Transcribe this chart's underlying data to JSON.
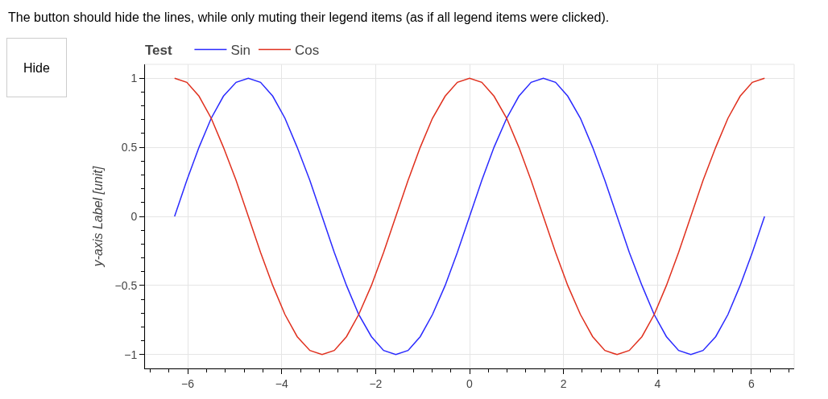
{
  "chart_data": {
    "type": "line",
    "title": "Test",
    "ylabel": "y-axis Label [unit]",
    "annotations": [
      "The button should hide the lines, while only muting their legend items (as if all legend items were clicked).",
      "Hide"
    ],
    "x": [
      -6.28,
      -6.02,
      -5.76,
      -5.5,
      -5.24,
      -4.97,
      -4.71,
      -4.45,
      -4.19,
      -3.93,
      -3.67,
      -3.4,
      -3.14,
      -2.88,
      -2.62,
      -2.36,
      -2.09,
      -1.83,
      -1.57,
      -1.31,
      -1.05,
      -0.79,
      -0.52,
      -0.26,
      0,
      0.26,
      0.52,
      0.79,
      1.05,
      1.31,
      1.57,
      1.83,
      2.09,
      2.36,
      2.62,
      2.88,
      3.14,
      3.4,
      3.67,
      3.93,
      4.19,
      4.45,
      4.71,
      4.97,
      5.24,
      5.5,
      5.76,
      6.02,
      6.28
    ],
    "series": [
      {
        "name": "Sin",
        "color": "#2a2aff",
        "values": [
          0,
          0.26,
          0.5,
          0.71,
          0.87,
          0.97,
          1,
          0.97,
          0.87,
          0.71,
          0.5,
          0.26,
          0,
          -0.26,
          -0.5,
          -0.71,
          -0.87,
          -0.97,
          -1,
          -0.97,
          -0.87,
          -0.71,
          -0.5,
          -0.26,
          0,
          0.26,
          0.5,
          0.71,
          0.87,
          0.97,
          1,
          0.97,
          0.87,
          0.71,
          0.5,
          0.26,
          0,
          -0.26,
          -0.5,
          -0.71,
          -0.87,
          -0.97,
          -1,
          -0.97,
          -0.87,
          -0.71,
          -0.5,
          -0.26,
          0
        ]
      },
      {
        "name": "Cos",
        "color": "#e0301e",
        "values": [
          1,
          0.97,
          0.87,
          0.71,
          0.5,
          0.26,
          0,
          -0.26,
          -0.5,
          -0.71,
          -0.87,
          -0.97,
          -1,
          -0.97,
          -0.87,
          -0.71,
          -0.5,
          -0.26,
          0,
          0.26,
          0.5,
          0.71,
          0.87,
          0.97,
          1,
          0.97,
          0.87,
          0.71,
          0.5,
          0.26,
          0,
          -0.26,
          -0.5,
          -0.71,
          -0.87,
          -0.97,
          -1,
          -0.97,
          -0.87,
          -0.71,
          -0.5,
          -0.26,
          0,
          0.26,
          0.5,
          0.71,
          0.87,
          0.97,
          1
        ]
      }
    ],
    "xlim": [
      -6.91,
      6.91
    ],
    "ylim": [
      -1.1,
      1.1
    ],
    "xticks": [
      {
        "value": -6.8,
        "label": null
      },
      {
        "value": -6.4,
        "label": null
      },
      {
        "value": -6,
        "label": "−6"
      },
      {
        "value": -5.6,
        "label": null
      },
      {
        "value": -5.2,
        "label": null
      },
      {
        "value": -4.8,
        "label": null
      },
      {
        "value": -4.4,
        "label": null
      },
      {
        "value": -4,
        "label": "−4"
      },
      {
        "value": -3.6,
        "label": null
      },
      {
        "value": -3.2,
        "label": null
      },
      {
        "value": -2.8,
        "label": null
      },
      {
        "value": -2.4,
        "label": null
      },
      {
        "value": -2,
        "label": "−2"
      },
      {
        "value": -1.6,
        "label": null
      },
      {
        "value": -1.2,
        "label": null
      },
      {
        "value": -0.8,
        "label": null
      },
      {
        "value": -0.4,
        "label": null
      },
      0,
      {
        "value": 0.4,
        "label": null
      },
      {
        "value": 0.8,
        "label": null
      },
      {
        "value": 1.2,
        "label": null
      },
      {
        "value": 1.6,
        "label": null
      },
      2,
      {
        "value": 2.4,
        "label": null
      },
      {
        "value": 2.8,
        "label": null
      },
      {
        "value": 3.2,
        "label": null
      },
      {
        "value": 3.6,
        "label": null
      },
      4,
      {
        "value": 4.4,
        "label": null
      },
      {
        "value": 4.8,
        "label": null
      },
      {
        "value": 5.2,
        "label": null
      },
      {
        "value": 5.6,
        "label": null
      },
      6,
      {
        "value": 6.4,
        "label": null
      },
      {
        "value": 6.8,
        "label": null
      }
    ],
    "yticks": [
      {
        "value": -1,
        "label": "−1"
      },
      {
        "value": -0.9,
        "label": null
      },
      {
        "value": -0.8,
        "label": null
      },
      {
        "value": -0.7,
        "label": null
      },
      {
        "value": -0.6,
        "label": null
      },
      {
        "value": -0.5,
        "label": "−0.5"
      },
      {
        "value": -0.4,
        "label": null
      },
      {
        "value": -0.3,
        "label": null
      },
      {
        "value": -0.2,
        "label": null
      },
      {
        "value": -0.1,
        "label": null
      },
      0,
      {
        "value": 0.1,
        "label": null
      },
      {
        "value": 0.2,
        "label": null
      },
      {
        "value": 0.3,
        "label": null
      },
      {
        "value": 0.4,
        "label": null
      },
      0.5,
      {
        "value": 0.6,
        "label": null
      },
      {
        "value": 0.7,
        "label": null
      },
      {
        "value": 0.8,
        "label": null
      },
      {
        "value": 0.9,
        "label": null
      },
      1
    ],
    "grid": true,
    "legend": "top left"
  }
}
